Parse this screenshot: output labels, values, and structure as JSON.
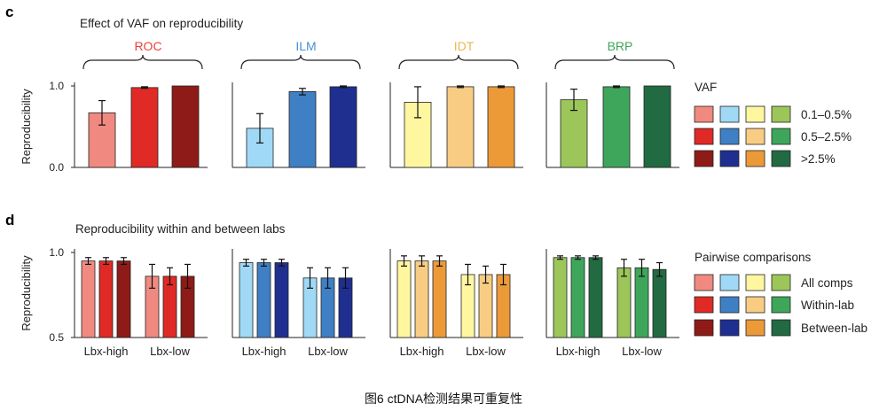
{
  "figure_caption": "图6 ctDNA检测结果可重复性",
  "colors": {
    "ROC": [
      "#f08a80",
      "#e02a26",
      "#8e1b17"
    ],
    "ILM": [
      "#9fd9f6",
      "#3f7fc4",
      "#1f2f90"
    ],
    "IDT": [
      "#fff6a0",
      "#f8cd83",
      "#ec9a38"
    ],
    "BRP": [
      "#9cc65a",
      "#3ea65a",
      "#226a42"
    ],
    "title_ROC": "#e8413c",
    "title_ILM": "#4a90d9",
    "title_IDT": "#f0b64c",
    "title_BRP": "#3ea65a"
  },
  "chart_data": [
    {
      "panel_letter": "c",
      "type": "bar",
      "title": "Effect of VAF on reproducibility",
      "ylabel": "Reproducibility",
      "ylim": [
        0,
        1
      ],
      "yticks": [
        "1.0",
        "0.0"
      ],
      "groups": [
        "ROC",
        "ILM",
        "IDT",
        "BRP"
      ],
      "bars_per_group": [
        "0.1–0.5%",
        "0.5–2.5%",
        ">2.5%"
      ],
      "values": {
        "ROC": [
          0.67,
          0.98,
          1.0
        ],
        "ILM": [
          0.48,
          0.93,
          0.99
        ],
        "IDT": [
          0.8,
          0.99,
          0.99
        ],
        "BRP": [
          0.83,
          0.99,
          1.0
        ]
      },
      "errors": {
        "ROC": [
          0.15,
          0.01,
          0
        ],
        "ILM": [
          0.18,
          0.04,
          0.01
        ],
        "IDT": [
          0.19,
          0.01,
          0.01
        ],
        "BRP": [
          0.13,
          0.01,
          0
        ]
      },
      "legend_title": "VAF",
      "legend_labels": [
        "0.1–0.5%",
        "0.5–2.5%",
        ">2.5%"
      ],
      "legend_placement": "right"
    },
    {
      "panel_letter": "d",
      "type": "bar",
      "title": "Reproducibility within and between labs",
      "ylabel": "Reproducibility",
      "ylim": [
        0.5,
        1.0
      ],
      "yticks": [
        "1.0",
        "0.5"
      ],
      "groups": [
        "ROC",
        "ILM",
        "IDT",
        "BRP"
      ],
      "categories": [
        "Lbx-high",
        "Lbx-low"
      ],
      "values": {
        "ROC": [
          [
            0.95,
            0.95,
            0.95
          ],
          [
            0.86,
            0.86,
            0.86
          ]
        ],
        "ILM": [
          [
            0.94,
            0.94,
            0.94
          ],
          [
            0.85,
            0.85,
            0.85
          ]
        ],
        "IDT": [
          [
            0.95,
            0.95,
            0.95
          ],
          [
            0.87,
            0.87,
            0.87
          ]
        ],
        "BRP": [
          [
            0.97,
            0.97,
            0.97
          ],
          [
            0.91,
            0.91,
            0.9
          ]
        ]
      },
      "errors": {
        "ROC": [
          [
            0.02,
            0.02,
            0.02
          ],
          [
            0.07,
            0.05,
            0.07
          ]
        ],
        "ILM": [
          [
            0.02,
            0.02,
            0.02
          ],
          [
            0.06,
            0.06,
            0.06
          ]
        ],
        "IDT": [
          [
            0.03,
            0.03,
            0.03
          ],
          [
            0.06,
            0.05,
            0.06
          ]
        ],
        "BRP": [
          [
            0.01,
            0.01,
            0.01
          ],
          [
            0.05,
            0.05,
            0.04
          ]
        ]
      },
      "legend_title": "Pairwise comparisons",
      "legend_labels": [
        "All comps",
        "Within-lab",
        "Between-lab"
      ],
      "legend_placement": "right"
    }
  ]
}
